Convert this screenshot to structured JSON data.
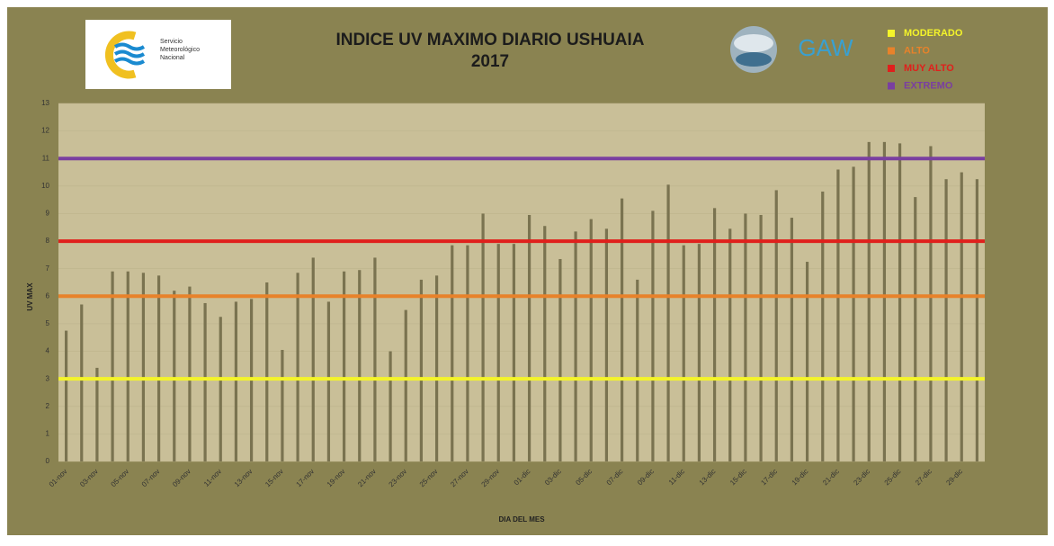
{
  "chart_data": {
    "type": "bar",
    "title": "INDICE UV MAXIMO DIARIO USHUAIA",
    "subtitle": "2017",
    "y_label": "UV MAX",
    "x_label": "DIA DEL MES",
    "logos": {
      "smn": [
        "Servicio",
        "Meteorológico",
        "Nacional"
      ],
      "gaw": "GAW"
    },
    "color": "#7a7350",
    "ylim": [
      0,
      13
    ],
    "yticks": [
      0,
      1,
      2,
      3,
      4,
      5,
      6,
      7,
      8,
      9,
      10,
      11,
      12,
      13
    ],
    "grid": true,
    "categories": [
      "01-nov",
      null,
      "03-nov",
      null,
      "05-nov",
      null,
      "07-nov",
      null,
      "09-nov",
      null,
      "11-nov",
      null,
      "13-nov",
      null,
      "15-nov",
      null,
      "17-nov",
      null,
      "19-nov",
      null,
      "21-nov",
      null,
      "23-nov",
      null,
      "25-nov",
      null,
      "27-nov",
      null,
      "29-nov",
      null,
      "01-dic",
      null,
      "03-dic",
      null,
      "05-dic",
      null,
      "07-dic",
      null,
      "09-dic",
      null,
      "11-dic",
      null,
      "13-dic",
      null,
      "15-dic",
      null,
      "17-dic",
      null,
      "19-dic",
      null,
      "21-dic",
      null,
      "23-dic",
      null,
      "25-dic",
      null,
      "27-dic",
      null,
      "29-dic",
      null
    ],
    "values": [
      4.75,
      5.7,
      3.4,
      6.9,
      6.9,
      6.85,
      6.75,
      6.2,
      6.35,
      5.75,
      5.25,
      5.8,
      5.9,
      6.5,
      4.05,
      6.85,
      7.4,
      5.8,
      6.9,
      6.95,
      7.4,
      4.0,
      5.5,
      6.6,
      6.75,
      7.85,
      7.85,
      9.0,
      7.9,
      7.9,
      8.95,
      8.55,
      7.35,
      8.35,
      8.8,
      8.45,
      9.55,
      6.6,
      9.1,
      10.05,
      7.85,
      7.9,
      9.2,
      8.45,
      9.0,
      8.95,
      9.85,
      8.85,
      7.25,
      9.8,
      10.6,
      10.7,
      11.6,
      11.6,
      11.55,
      9.6,
      11.45,
      10.25,
      10.5,
      10.25
    ],
    "thresholds": [
      {
        "name": "MODERADO",
        "color": "#f4f42a",
        "value": 3
      },
      {
        "name": "ALTO",
        "color": "#e8822a",
        "value": 6
      },
      {
        "name": "MUY ALTO",
        "color": "#e0201c",
        "value": 8
      },
      {
        "name": "EXTREMO",
        "color": "#7a3fa0",
        "value": 11
      }
    ]
  }
}
